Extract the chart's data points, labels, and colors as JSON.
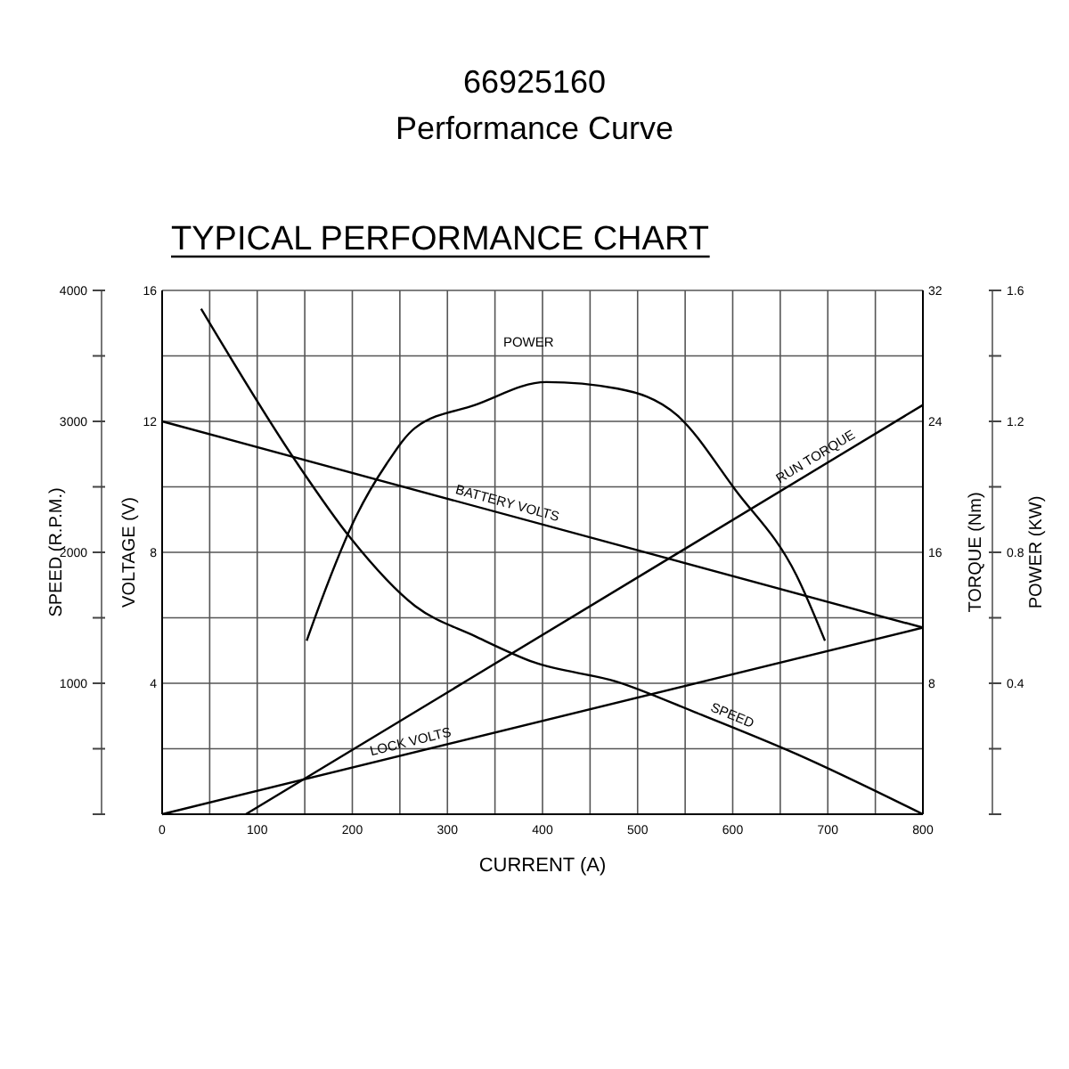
{
  "chart_data": [
    {
      "type": "line",
      "title": "66925160",
      "subtitle": "Performance Curve",
      "annotations": [
        "TYPICAL PERFORMANCE CHART"
      ],
      "xlabel": "CURRENT (A)",
      "ylabel": "VOLTAGE (V)",
      "y2label": "TORQUE (Nm)",
      "y3label": "SPEED (R.P.M.)",
      "xlim": [
        0,
        800
      ],
      "xticks": [
        0,
        {
          "value": 50,
          "label": null
        },
        100,
        {
          "value": 150,
          "label": null
        },
        200,
        {
          "value": 250,
          "label": null
        },
        300,
        {
          "value": 350,
          "label": null
        },
        400,
        {
          "value": 450,
          "label": null
        },
        500,
        {
          "value": 550,
          "label": null
        },
        600,
        {
          "value": 650,
          "label": null
        },
        700,
        {
          "value": 750,
          "label": null
        },
        800
      ],
      "ylim": [
        0,
        16
      ],
      "yticks": [
        {
          "value": 0,
          "label": null
        },
        {
          "value": 2,
          "label": null
        },
        4,
        {
          "value": 6,
          "label": null
        },
        8,
        {
          "value": 10,
          "label": null
        },
        12,
        {
          "value": 14,
          "label": null
        },
        16
      ],
      "y2lim": [
        0,
        32
      ],
      "y2ticks": [
        8,
        16,
        24,
        32
      ],
      "y3lim": [
        0,
        4000
      ],
      "y3ticks": [
        {
          "value": 0,
          "label": null
        },
        {
          "value": 500,
          "label": null
        },
        1000,
        {
          "value": 1500,
          "label": null
        },
        2000,
        {
          "value": 2500,
          "label": null
        },
        3000,
        {
          "value": 3500,
          "label": null
        },
        4000
      ],
      "grid": true,
      "marker": "none",
      "line_style": "solid",
      "series": [
        {
          "name": "BATTERY VOLTS",
          "color": "#000000",
          "x": [
            0,
            800
          ],
          "values": [
            12,
            5.7
          ]
        },
        {
          "name": "RUN TORQUE",
          "color": "#000000",
          "axis": "y2",
          "x": [
            88,
            800
          ],
          "values": [
            0,
            25
          ]
        },
        {
          "name": "LOCK VOLTS",
          "color": "#000000",
          "x": [
            0,
            800
          ],
          "values": [
            0,
            5.7
          ]
        },
        {
          "name": "SPEED",
          "color": "#000000",
          "axis": "y3",
          "x": [
            41,
            142,
            198,
            266,
            329,
            391,
            479,
            560,
            667,
            800
          ],
          "values": [
            3860,
            2680,
            2110,
            1590,
            1360,
            1160,
            1010,
            780,
            460,
            0
          ]
        }
      ]
    },
    {
      "type": "line",
      "ylabel": "POWER (KW)",
      "xlim": [
        0,
        800
      ],
      "ylim": [
        0,
        1.6
      ],
      "yticks": [
        0.4,
        0.8,
        1.2,
        1.6
      ],
      "tick_labels": "y",
      "marker": "none",
      "line_style": "solid",
      "series": [
        {
          "name": "POWER",
          "color": "#000000",
          "x": [
            152,
            167,
            204,
            236,
            266,
            329,
            404,
            479,
            541,
            603,
            667,
            697
          ],
          "values": [
            0.53,
            0.65,
            0.91,
            1.07,
            1.18,
            1.25,
            1.32,
            1.3,
            1.22,
            0.99,
            0.73,
            0.53
          ]
        }
      ]
    }
  ]
}
